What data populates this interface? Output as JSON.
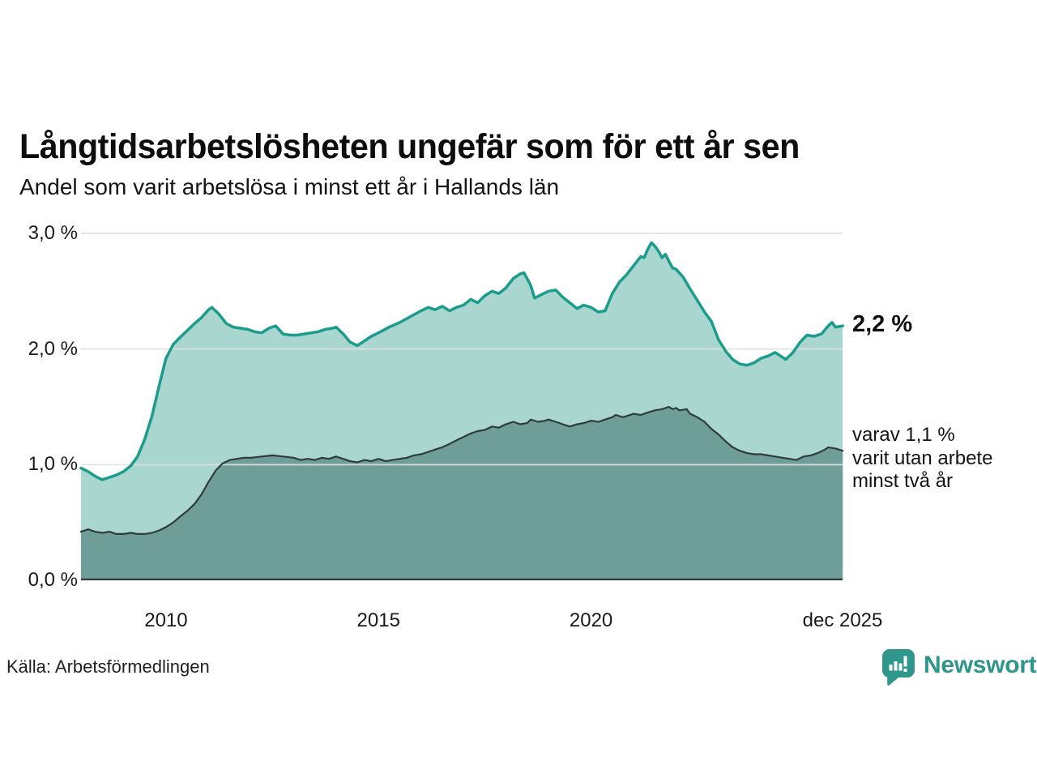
{
  "header": {
    "title": "Långtidsarbetslösheten ungefär som för ett år sen",
    "subtitle": "Andel som varit arbetslösa i minst ett år i Hallands län"
  },
  "annotations": {
    "end_value": "2,2 %",
    "secondary_line1": "varav 1,1 %",
    "secondary_line2": "varit utan arbete",
    "secondary_line3": "minst två år"
  },
  "footer": {
    "source": "Källa: Arbetsförmedlingen",
    "brand_name": "Newsworthy",
    "brand_logo_icon": "speech-bubble-bar-chart-icon"
  },
  "colors": {
    "accent_line": "#1b9c8d",
    "area_light": "#a9d6cf",
    "area_dark": "#6f9d98",
    "dark_line": "#2e3d3b",
    "grid": "#e0e0e0",
    "brand": "#2f968c",
    "text": "#141414"
  },
  "chart_data": {
    "type": "area",
    "title": "Långtidsarbetslösheten ungefär som för ett år sen",
    "subtitle": "Andel som varit arbetslösa i minst ett år i Hallands län",
    "xlabel": "",
    "ylabel": "",
    "grid": true,
    "legend_position": "right-annotations",
    "x_domain": [
      2008.0,
      2025.917
    ],
    "y_domain": [
      0,
      3
    ],
    "y_ticks": [
      {
        "label": "3,0 %",
        "value": 3
      },
      {
        "label": "2,0 %",
        "value": 2
      },
      {
        "label": "1,0 %",
        "value": 1
      },
      {
        "label": "0,0 %",
        "value": 0
      }
    ],
    "x_ticks": [
      {
        "label": "2010",
        "value": 2010
      },
      {
        "label": "2015",
        "value": 2015
      },
      {
        "label": "2020",
        "value": 2020
      },
      {
        "label": "dec 2025",
        "value": 2025.917
      }
    ],
    "series": [
      {
        "name": "Andel arbetslösa minst ett år",
        "end_label": "2,2 %",
        "end_value": 2.2,
        "points": [
          [
            2008.0,
            0.97
          ],
          [
            2008.17,
            0.94
          ],
          [
            2008.33,
            0.9
          ],
          [
            2008.5,
            0.87
          ],
          [
            2008.67,
            0.89
          ],
          [
            2008.83,
            0.91
          ],
          [
            2009.0,
            0.94
          ],
          [
            2009.17,
            0.99
          ],
          [
            2009.33,
            1.07
          ],
          [
            2009.5,
            1.22
          ],
          [
            2009.67,
            1.42
          ],
          [
            2009.83,
            1.67
          ],
          [
            2010.0,
            1.92
          ],
          [
            2010.17,
            2.04
          ],
          [
            2010.33,
            2.1
          ],
          [
            2010.5,
            2.16
          ],
          [
            2010.67,
            2.22
          ],
          [
            2010.83,
            2.27
          ],
          [
            2011.0,
            2.34
          ],
          [
            2011.08,
            2.36
          ],
          [
            2011.25,
            2.3
          ],
          [
            2011.42,
            2.22
          ],
          [
            2011.58,
            2.19
          ],
          [
            2011.75,
            2.18
          ],
          [
            2011.92,
            2.17
          ],
          [
            2012.08,
            2.15
          ],
          [
            2012.25,
            2.14
          ],
          [
            2012.42,
            2.18
          ],
          [
            2012.58,
            2.2
          ],
          [
            2012.75,
            2.13
          ],
          [
            2012.92,
            2.12
          ],
          [
            2013.08,
            2.12
          ],
          [
            2013.25,
            2.13
          ],
          [
            2013.42,
            2.14
          ],
          [
            2013.58,
            2.15
          ],
          [
            2013.75,
            2.17
          ],
          [
            2013.92,
            2.18
          ],
          [
            2014.0,
            2.19
          ],
          [
            2014.17,
            2.13
          ],
          [
            2014.33,
            2.06
          ],
          [
            2014.5,
            2.03
          ],
          [
            2014.67,
            2.07
          ],
          [
            2014.83,
            2.11
          ],
          [
            2015.0,
            2.14
          ],
          [
            2015.25,
            2.19
          ],
          [
            2015.5,
            2.23
          ],
          [
            2015.75,
            2.28
          ],
          [
            2016.0,
            2.33
          ],
          [
            2016.17,
            2.36
          ],
          [
            2016.33,
            2.34
          ],
          [
            2016.5,
            2.37
          ],
          [
            2016.67,
            2.33
          ],
          [
            2016.83,
            2.36
          ],
          [
            2017.0,
            2.38
          ],
          [
            2017.17,
            2.43
          ],
          [
            2017.33,
            2.4
          ],
          [
            2017.5,
            2.46
          ],
          [
            2017.67,
            2.5
          ],
          [
            2017.83,
            2.48
          ],
          [
            2018.0,
            2.53
          ],
          [
            2018.17,
            2.61
          ],
          [
            2018.33,
            2.65
          ],
          [
            2018.42,
            2.66
          ],
          [
            2018.58,
            2.55
          ],
          [
            2018.67,
            2.44
          ],
          [
            2018.83,
            2.47
          ],
          [
            2019.0,
            2.5
          ],
          [
            2019.17,
            2.51
          ],
          [
            2019.33,
            2.45
          ],
          [
            2019.5,
            2.4
          ],
          [
            2019.67,
            2.35
          ],
          [
            2019.83,
            2.38
          ],
          [
            2020.0,
            2.36
          ],
          [
            2020.17,
            2.32
          ],
          [
            2020.33,
            2.33
          ],
          [
            2020.5,
            2.48
          ],
          [
            2020.67,
            2.58
          ],
          [
            2020.83,
            2.64
          ],
          [
            2021.0,
            2.72
          ],
          [
            2021.17,
            2.8
          ],
          [
            2021.25,
            2.79
          ],
          [
            2021.33,
            2.86
          ],
          [
            2021.42,
            2.92
          ],
          [
            2021.5,
            2.89
          ],
          [
            2021.58,
            2.85
          ],
          [
            2021.67,
            2.79
          ],
          [
            2021.75,
            2.82
          ],
          [
            2021.83,
            2.76
          ],
          [
            2021.92,
            2.7
          ],
          [
            2022.0,
            2.69
          ],
          [
            2022.17,
            2.62
          ],
          [
            2022.33,
            2.52
          ],
          [
            2022.5,
            2.42
          ],
          [
            2022.67,
            2.32
          ],
          [
            2022.83,
            2.24
          ],
          [
            2023.0,
            2.08
          ],
          [
            2023.17,
            1.98
          ],
          [
            2023.33,
            1.91
          ],
          [
            2023.5,
            1.87
          ],
          [
            2023.67,
            1.86
          ],
          [
            2023.83,
            1.88
          ],
          [
            2024.0,
            1.92
          ],
          [
            2024.17,
            1.94
          ],
          [
            2024.33,
            1.97
          ],
          [
            2024.5,
            1.93
          ],
          [
            2024.58,
            1.91
          ],
          [
            2024.75,
            1.97
          ],
          [
            2024.92,
            2.06
          ],
          [
            2025.08,
            2.12
          ],
          [
            2025.25,
            2.11
          ],
          [
            2025.42,
            2.13
          ],
          [
            2025.58,
            2.2
          ],
          [
            2025.67,
            2.23
          ],
          [
            2025.75,
            2.19
          ],
          [
            2025.92,
            2.2
          ]
        ]
      },
      {
        "name": "varav utan arbete minst två år",
        "end_label": "1,1 %",
        "end_value": 1.1,
        "points": [
          [
            2008.0,
            0.42
          ],
          [
            2008.17,
            0.44
          ],
          [
            2008.33,
            0.42
          ],
          [
            2008.5,
            0.41
          ],
          [
            2008.67,
            0.42
          ],
          [
            2008.83,
            0.4
          ],
          [
            2009.0,
            0.4
          ],
          [
            2009.17,
            0.41
          ],
          [
            2009.33,
            0.4
          ],
          [
            2009.5,
            0.4
          ],
          [
            2009.67,
            0.41
          ],
          [
            2009.83,
            0.43
          ],
          [
            2010.0,
            0.46
          ],
          [
            2010.17,
            0.5
          ],
          [
            2010.33,
            0.55
          ],
          [
            2010.5,
            0.6
          ],
          [
            2010.67,
            0.66
          ],
          [
            2010.83,
            0.74
          ],
          [
            2011.0,
            0.85
          ],
          [
            2011.17,
            0.95
          ],
          [
            2011.33,
            1.01
          ],
          [
            2011.5,
            1.04
          ],
          [
            2011.67,
            1.05
          ],
          [
            2011.83,
            1.06
          ],
          [
            2012.0,
            1.06
          ],
          [
            2012.25,
            1.07
          ],
          [
            2012.5,
            1.08
          ],
          [
            2012.75,
            1.07
          ],
          [
            2013.0,
            1.06
          ],
          [
            2013.17,
            1.04
          ],
          [
            2013.33,
            1.05
          ],
          [
            2013.5,
            1.04
          ],
          [
            2013.67,
            1.06
          ],
          [
            2013.83,
            1.05
          ],
          [
            2014.0,
            1.07
          ],
          [
            2014.17,
            1.05
          ],
          [
            2014.33,
            1.03
          ],
          [
            2014.5,
            1.02
          ],
          [
            2014.67,
            1.04
          ],
          [
            2014.83,
            1.03
          ],
          [
            2015.0,
            1.05
          ],
          [
            2015.17,
            1.03
          ],
          [
            2015.33,
            1.04
          ],
          [
            2015.5,
            1.05
          ],
          [
            2015.67,
            1.06
          ],
          [
            2015.83,
            1.08
          ],
          [
            2016.0,
            1.09
          ],
          [
            2016.17,
            1.11
          ],
          [
            2016.33,
            1.13
          ],
          [
            2016.5,
            1.15
          ],
          [
            2016.67,
            1.18
          ],
          [
            2016.83,
            1.21
          ],
          [
            2017.0,
            1.24
          ],
          [
            2017.17,
            1.27
          ],
          [
            2017.33,
            1.29
          ],
          [
            2017.5,
            1.3
          ],
          [
            2017.67,
            1.33
          ],
          [
            2017.83,
            1.32
          ],
          [
            2018.0,
            1.35
          ],
          [
            2018.17,
            1.37
          ],
          [
            2018.33,
            1.35
          ],
          [
            2018.5,
            1.36
          ],
          [
            2018.58,
            1.39
          ],
          [
            2018.75,
            1.37
          ],
          [
            2018.92,
            1.38
          ],
          [
            2019.0,
            1.39
          ],
          [
            2019.17,
            1.37
          ],
          [
            2019.33,
            1.35
          ],
          [
            2019.5,
            1.33
          ],
          [
            2019.67,
            1.35
          ],
          [
            2019.83,
            1.36
          ],
          [
            2020.0,
            1.38
          ],
          [
            2020.17,
            1.37
          ],
          [
            2020.33,
            1.39
          ],
          [
            2020.5,
            1.41
          ],
          [
            2020.58,
            1.43
          ],
          [
            2020.75,
            1.41
          ],
          [
            2020.92,
            1.43
          ],
          [
            2021.0,
            1.44
          ],
          [
            2021.17,
            1.43
          ],
          [
            2021.33,
            1.45
          ],
          [
            2021.5,
            1.47
          ],
          [
            2021.67,
            1.48
          ],
          [
            2021.83,
            1.5
          ],
          [
            2021.92,
            1.48
          ],
          [
            2022.0,
            1.49
          ],
          [
            2022.08,
            1.47
          ],
          [
            2022.25,
            1.48
          ],
          [
            2022.33,
            1.44
          ],
          [
            2022.5,
            1.41
          ],
          [
            2022.67,
            1.37
          ],
          [
            2022.83,
            1.31
          ],
          [
            2023.0,
            1.26
          ],
          [
            2023.17,
            1.2
          ],
          [
            2023.33,
            1.15
          ],
          [
            2023.5,
            1.12
          ],
          [
            2023.67,
            1.1
          ],
          [
            2023.83,
            1.09
          ],
          [
            2024.0,
            1.09
          ],
          [
            2024.17,
            1.08
          ],
          [
            2024.33,
            1.07
          ],
          [
            2024.5,
            1.06
          ],
          [
            2024.67,
            1.05
          ],
          [
            2024.83,
            1.04
          ],
          [
            2025.0,
            1.07
          ],
          [
            2025.17,
            1.08
          ],
          [
            2025.33,
            1.1
          ],
          [
            2025.5,
            1.13
          ],
          [
            2025.58,
            1.15
          ],
          [
            2025.75,
            1.14
          ],
          [
            2025.92,
            1.12
          ]
        ]
      }
    ]
  }
}
